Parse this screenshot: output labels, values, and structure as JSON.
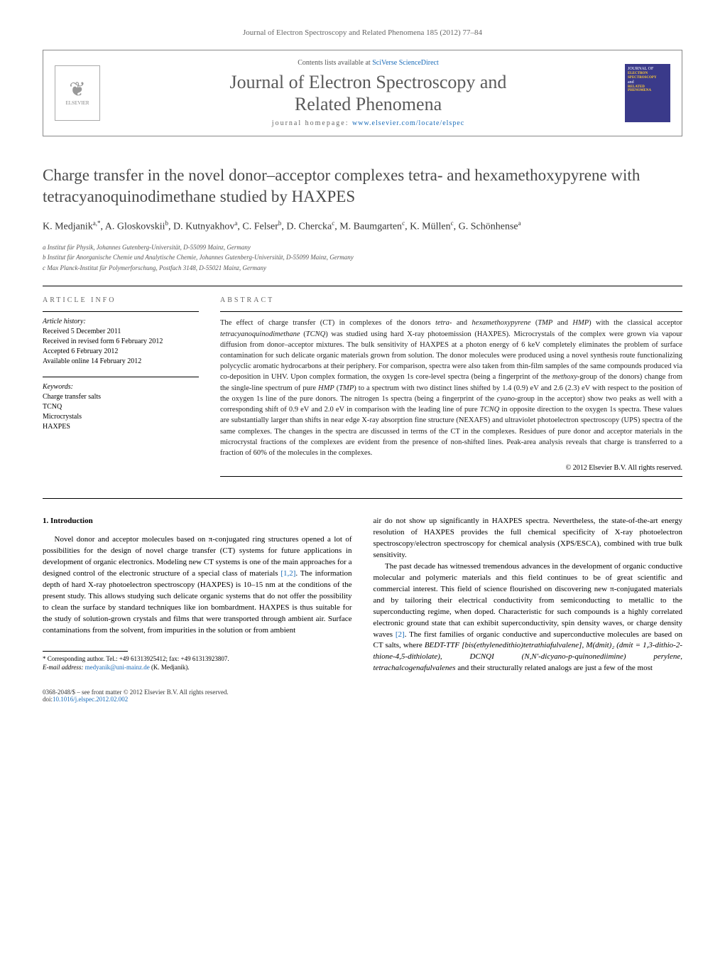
{
  "top_header": "Journal of Electron Spectroscopy and Related Phenomena 185 (2012) 77–84",
  "banner": {
    "contents_prefix": "Contents lists available at ",
    "contents_link": "SciVerse ScienceDirect",
    "journal_title_line1": "Journal of Electron Spectroscopy and",
    "journal_title_line2": "Related Phenomena",
    "homepage_prefix": "journal homepage: ",
    "homepage_link": "www.elsevier.com/locate/elspec",
    "publisher_label": "ELSEVIER",
    "cover_lines": [
      "JOURNAL OF",
      "ELECTRON",
      "SPECTROSCOPY",
      "and",
      "RELATED PHENOMENA"
    ]
  },
  "article": {
    "title": "Charge transfer in the novel donor–acceptor complexes tetra- and hexamethoxypyrene with tetracyanoquinodimethane studied by HAXPES",
    "authors_html": "K. Medjanik<sup>a,*</sup>, A. Gloskovskii<sup>b</sup>, D. Kutnyakhov<sup>a</sup>, C. Felser<sup>b</sup>, D. Chercka<sup>c</sup>, M. Baumgarten<sup>c</sup>, K. Müllen<sup>c</sup>, G. Schönhense<sup>a</sup>",
    "affiliations": [
      "a Institut für Physik, Johannes Gutenberg-Universität, D-55099 Mainz, Germany",
      "b Institut für Anorganische Chemie und Analytische Chemie, Johannes Gutenberg-Universität, D-55099 Mainz, Germany",
      "c Max Planck-Institut für Polymerforschung, Postfach 3148, D-55021 Mainz, Germany"
    ]
  },
  "info": {
    "heading": "ARTICLE INFO",
    "history_head": "Article history:",
    "history": [
      "Received 5 December 2011",
      "Received in revised form 6 February 2012",
      "Accepted 6 February 2012",
      "Available online 14 February 2012"
    ],
    "keywords_head": "Keywords:",
    "keywords": [
      "Charge transfer salts",
      "TCNQ",
      "Microcrystals",
      "HAXPES"
    ]
  },
  "abstract": {
    "heading": "ABSTRACT",
    "text": "The effect of charge transfer (CT) in complexes of the donors tetra- and hexamethoxypyrene (TMP and HMP) with the classical acceptor tetracyanoquinodimethane (TCNQ) was studied using hard X-ray photoemission (HAXPES). Microcrystals of the complex were grown via vapour diffusion from donor–acceptor mixtures. The bulk sensitivity of HAXPES at a photon energy of 6 keV completely eliminates the problem of surface contamination for such delicate organic materials grown from solution. The donor molecules were produced using a novel synthesis route functionalizing polycyclic aromatic hydrocarbons at their periphery. For comparison, spectra were also taken from thin-film samples of the same compounds produced via co-deposition in UHV. Upon complex formation, the oxygen 1s core-level spectra (being a fingerprint of the methoxy-group of the donors) change from the single-line spectrum of pure HMP (TMP) to a spectrum with two distinct lines shifted by 1.4 (0.9) eV and 2.6 (2.3) eV with respect to the position of the oxygen 1s line of the pure donors. The nitrogen 1s spectra (being a fingerprint of the cyano-group in the acceptor) show two peaks as well with a corresponding shift of 0.9 eV and 2.0 eV in comparison with the leading line of pure TCNQ in opposite direction to the oxygen 1s spectra. These values are substantially larger than shifts in near edge X-ray absorption fine structure (NEXAFS) and ultraviolet photoelectron spectroscopy (UPS) spectra of the same complexes. The changes in the spectra are discussed in terms of the CT in the complexes. Residues of pure donor and acceptor materials in the microcrystal fractions of the complexes are evident from the presence of non-shifted lines. Peak-area analysis reveals that charge is transferred to a fraction of 60% of the molecules in the complexes.",
    "copyright": "© 2012 Elsevier B.V. All rights reserved."
  },
  "intro": {
    "heading": "1. Introduction",
    "p1": "Novel donor and acceptor molecules based on π-conjugated ring structures opened a lot of possibilities for the design of novel charge transfer (CT) systems for future applications in development of organic electronics. Modeling new CT systems is one of the main approaches for a designed control of the electronic structure of a special class of materials [1,2]. The information depth of hard X-ray photoelectron spectroscopy (HAXPES) is 10–15 nm at the conditions of the present study. This allows studying such delicate organic systems that do not offer the possibility to clean the surface by standard techniques like ion bombardment. HAXPES is thus suitable for the study of solution-grown crystals and films that were transported through ambient air. Surface contaminations from the solvent, from impurities in the solution or from ambient",
    "p2a": "air do not show up significantly in HAXPES spectra. Nevertheless, the state-of-the-art energy resolution of HAXPES provides the full chemical specificity of X-ray photoelectron spectroscopy/electron spectroscopy for chemical analysis (XPS/ESCA), combined with true bulk sensitivity.",
    "p2b": "The past decade has witnessed tremendous advances in the development of organic conductive molecular and polymeric materials and this field continues to be of great scientific and commercial interest. This field of science flourished on discovering new π-conjugated materials and by tailoring their electrical conductivity from semiconducting to metallic to the superconducting regime, when doped. Characteristic for such compounds is a highly correlated electronic ground state that can exhibit superconductivity, spin density waves, or charge density waves [2]. The first families of organic conductive and superconductive molecules are based on CT salts, where BEDT-TTF [bis(ethylenedithio)tetrathiafulvalene], M(dmit)₂ (dmit = 1,3-dithio-2-thione-4,5-dithiolate), DCNQI (N,N'-dicyano-p-quinonediimine) perylene, tetrachalcogenafulvalenes and their structurally related analogs are just a few of the most"
  },
  "footnote": {
    "corr_label": "* Corresponding author. Tel.: +49 61313925412; fax: +49 61313923807.",
    "email_label": "E-mail address: ",
    "email": "medyanik@uni-mainz.de",
    "email_suffix": " (K. Medjanik)."
  },
  "bottom": {
    "issn": "0368-2048/$ – see front matter © 2012 Elsevier B.V. All rights reserved.",
    "doi_prefix": "doi:",
    "doi": "10.1016/j.elspec.2012.02.002"
  },
  "style": {
    "link_color": "#1a6bb8",
    "heading_color": "#4a4a4a",
    "cover_bg": "#3a3a8a",
    "cover_accent": "#ffcc33"
  }
}
